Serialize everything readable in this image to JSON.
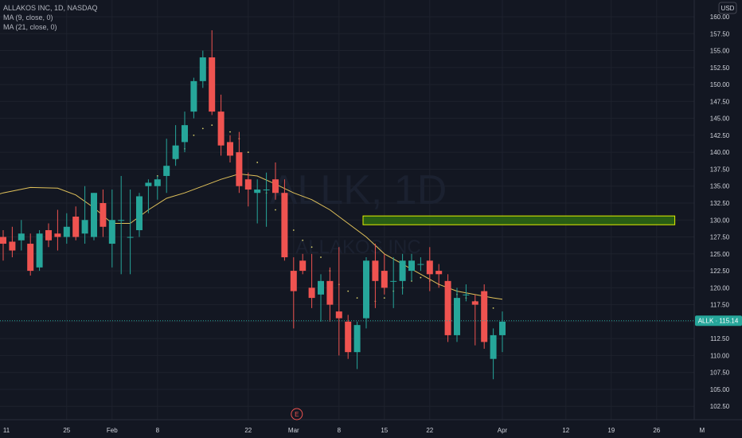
{
  "header": {
    "title_line": "ALLAKOS INC, 1D, NASDAQ",
    "indicators": [
      "MA (9, close, 0)",
      "MA (21, close, 0)"
    ]
  },
  "watermark": {
    "symbol": "ALLK, 1D",
    "name": "ALLAKOS INC"
  },
  "currency_button": "USD",
  "price_tag": {
    "label": "ALLK · 115.14",
    "color": "#26a69a"
  },
  "earnings_marker": "E",
  "colors": {
    "up": "#26a69a",
    "down": "#ef5350",
    "ma9": "#d8cf6a",
    "ma21": "#e0c15a",
    "zone": "#e2f000"
  },
  "chart_data": {
    "type": "candlestick",
    "symbol": "ALLK",
    "timeframe": "1D",
    "ylim": [
      101,
      162
    ],
    "y_ticks": [
      102.5,
      105.0,
      107.5,
      110.0,
      112.5,
      115.0,
      117.5,
      120.0,
      122.5,
      125.0,
      127.5,
      130.0,
      132.5,
      135.0,
      137.5,
      140.0,
      142.5,
      145.0,
      147.5,
      150.0,
      152.5,
      155.0,
      157.5,
      160.0
    ],
    "y_tick_labels": [
      "102.50",
      "105.00",
      "107.50",
      "110.00",
      "112.50",
      "115.00",
      "117.50",
      "120.00",
      "122.50",
      "125.00",
      "127.50",
      "130.00",
      "132.50",
      "135.00",
      "137.50",
      "140.00",
      "142.50",
      "145.00",
      "147.50",
      "150.00",
      "152.50",
      "155.00",
      "157.50",
      "160.00"
    ],
    "x_ticks": [
      {
        "label": "11",
        "i": -3
      },
      {
        "label": "25",
        "i": 7
      },
      {
        "label": "Feb",
        "i": 12
      },
      {
        "label": "8",
        "i": 17
      },
      {
        "label": "22",
        "i": 27
      },
      {
        "label": "Mar",
        "i": 32
      },
      {
        "label": "8",
        "i": 37
      },
      {
        "label": "15",
        "i": 42
      },
      {
        "label": "22",
        "i": 47
      },
      {
        "label": "Apr",
        "i": 55
      },
      {
        "label": "12",
        "i": 62
      },
      {
        "label": "19",
        "i": 67
      },
      {
        "label": "26",
        "i": 72
      },
      {
        "label": "M",
        "i": 77
      }
    ],
    "candles": [
      {
        "o": 127.5,
        "h": 128.5,
        "l": 124.0,
        "c": 126.5
      },
      {
        "o": 126.8,
        "h": 129.0,
        "l": 124.5,
        "c": 125.5
      },
      {
        "o": 127.0,
        "h": 130.0,
        "l": 125.5,
        "c": 128.0
      },
      {
        "o": 126.5,
        "h": 128.0,
        "l": 121.8,
        "c": 122.5
      },
      {
        "o": 123.0,
        "h": 128.5,
        "l": 122.5,
        "c": 128.0
      },
      {
        "o": 128.5,
        "h": 129.5,
        "l": 126.0,
        "c": 127.0
      },
      {
        "o": 128.0,
        "h": 131.5,
        "l": 125.5,
        "c": 127.5
      },
      {
        "o": 127.5,
        "h": 131.0,
        "l": 126.5,
        "c": 129.0
      },
      {
        "o": 130.5,
        "h": 132.0,
        "l": 127.0,
        "c": 127.5
      },
      {
        "o": 128.0,
        "h": 135.0,
        "l": 126.5,
        "c": 130.0
      },
      {
        "o": 127.5,
        "h": 134.0,
        "l": 127.0,
        "c": 134.0
      },
      {
        "o": 132.5,
        "h": 134.5,
        "l": 127.5,
        "c": 129.0
      },
      {
        "o": 126.5,
        "h": 134.5,
        "l": 123.0,
        "c": 130.0
      },
      {
        "o": 130.0,
        "h": 136.5,
        "l": 122.0,
        "c": 130.0
      },
      {
        "o": 127.5,
        "h": 134.5,
        "l": 122.0,
        "c": 127.5
      },
      {
        "o": 128.5,
        "h": 134.0,
        "l": 127.5,
        "c": 133.5
      },
      {
        "o": 135.0,
        "h": 136.0,
        "l": 131.0,
        "c": 135.5
      },
      {
        "o": 135.0,
        "h": 136.5,
        "l": 133.0,
        "c": 136.0
      },
      {
        "o": 136.5,
        "h": 142.0,
        "l": 134.0,
        "c": 138.0
      },
      {
        "o": 139.0,
        "h": 144.0,
        "l": 138.0,
        "c": 141.0
      },
      {
        "o": 141.5,
        "h": 146.0,
        "l": 140.0,
        "c": 144.0
      },
      {
        "o": 146.0,
        "h": 151.0,
        "l": 145.0,
        "c": 150.5
      },
      {
        "o": 150.5,
        "h": 155.0,
        "l": 149.5,
        "c": 154.0
      },
      {
        "o": 154.0,
        "h": 158.0,
        "l": 145.5,
        "c": 146.0
      },
      {
        "o": 146.0,
        "h": 148.5,
        "l": 139.5,
        "c": 141.0
      },
      {
        "o": 141.5,
        "h": 142.5,
        "l": 138.5,
        "c": 139.5
      },
      {
        "o": 140.0,
        "h": 143.0,
        "l": 134.0,
        "c": 135.0
      },
      {
        "o": 136.0,
        "h": 137.0,
        "l": 132.0,
        "c": 134.5
      },
      {
        "o": 134.0,
        "h": 136.0,
        "l": 129.5,
        "c": 134.5
      },
      {
        "o": 134.5,
        "h": 137.0,
        "l": 129.0,
        "c": 134.5
      },
      {
        "o": 136.0,
        "h": 138.5,
        "l": 133.0,
        "c": 134.0
      },
      {
        "o": 134.0,
        "h": 136.0,
        "l": 124.0,
        "c": 124.5
      },
      {
        "o": 122.5,
        "h": 124.5,
        "l": 114.0,
        "c": 119.5
      },
      {
        "o": 124.0,
        "h": 125.0,
        "l": 122.0,
        "c": 122.5
      },
      {
        "o": 120.0,
        "h": 125.0,
        "l": 117.0,
        "c": 118.5
      },
      {
        "o": 119.0,
        "h": 122.0,
        "l": 115.0,
        "c": 121.0
      },
      {
        "o": 121.0,
        "h": 123.0,
        "l": 115.0,
        "c": 117.5
      },
      {
        "o": 116.5,
        "h": 126.0,
        "l": 110.0,
        "c": 115.5
      },
      {
        "o": 115.0,
        "h": 116.0,
        "l": 109.5,
        "c": 110.5
      },
      {
        "o": 110.5,
        "h": 115.0,
        "l": 108.0,
        "c": 114.5
      },
      {
        "o": 115.5,
        "h": 124.5,
        "l": 114.0,
        "c": 124.0
      },
      {
        "o": 124.0,
        "h": 126.5,
        "l": 117.0,
        "c": 121.0
      },
      {
        "o": 122.5,
        "h": 125.0,
        "l": 119.0,
        "c": 120.0
      },
      {
        "o": 121.0,
        "h": 124.5,
        "l": 117.0,
        "c": 121.0
      },
      {
        "o": 121.0,
        "h": 125.0,
        "l": 119.0,
        "c": 124.0
      },
      {
        "o": 122.5,
        "h": 125.0,
        "l": 121.0,
        "c": 124.0
      },
      {
        "o": 123.5,
        "h": 124.5,
        "l": 122.5,
        "c": 123.5
      },
      {
        "o": 124.0,
        "h": 126.0,
        "l": 119.5,
        "c": 122.0
      },
      {
        "o": 122.5,
        "h": 123.5,
        "l": 120.0,
        "c": 122.0
      },
      {
        "o": 121.0,
        "h": 122.0,
        "l": 112.0,
        "c": 113.0
      },
      {
        "o": 113.0,
        "h": 120.0,
        "l": 112.0,
        "c": 118.5
      },
      {
        "o": 119.0,
        "h": 120.5,
        "l": 118.0,
        "c": 119.0
      },
      {
        "o": 118.0,
        "h": 119.0,
        "l": 111.5,
        "c": 117.5
      },
      {
        "o": 119.5,
        "h": 120.5,
        "l": 111.0,
        "c": 112.0
      },
      {
        "o": 109.5,
        "h": 114.0,
        "l": 106.5,
        "c": 113.0
      },
      {
        "o": 113.0,
        "h": 116.5,
        "l": 110.5,
        "c": 115.0
      }
    ],
    "ma21": [
      {
        "i": -3,
        "v": 132.8
      },
      {
        "i": 0,
        "v": 134.0
      },
      {
        "i": 3,
        "v": 134.8
      },
      {
        "i": 6,
        "v": 134.7
      },
      {
        "i": 8,
        "v": 133.7
      },
      {
        "i": 10,
        "v": 131.8
      },
      {
        "i": 12,
        "v": 129.5
      },
      {
        "i": 14,
        "v": 129.5
      },
      {
        "i": 16,
        "v": 131.5
      },
      {
        "i": 18,
        "v": 133.2
      },
      {
        "i": 20,
        "v": 134.0
      },
      {
        "i": 22,
        "v": 135.0
      },
      {
        "i": 24,
        "v": 136.0
      },
      {
        "i": 26,
        "v": 136.8
      },
      {
        "i": 28,
        "v": 136.5
      },
      {
        "i": 30,
        "v": 135.3
      },
      {
        "i": 32,
        "v": 134.0
      },
      {
        "i": 34,
        "v": 133.0
      },
      {
        "i": 36,
        "v": 131.5
      },
      {
        "i": 38,
        "v": 129.5
      },
      {
        "i": 40,
        "v": 127.5
      },
      {
        "i": 42,
        "v": 125.0
      },
      {
        "i": 44,
        "v": 123.5
      },
      {
        "i": 46,
        "v": 122.0
      },
      {
        "i": 48,
        "v": 120.5
      },
      {
        "i": 50,
        "v": 119.5
      },
      {
        "i": 52,
        "v": 119.0
      },
      {
        "i": 54,
        "v": 118.5
      },
      {
        "i": 55,
        "v": 118.3
      }
    ],
    "ma9": [
      {
        "i": 17,
        "v": 136.5
      },
      {
        "i": 18,
        "v": 137.5
      },
      {
        "i": 19,
        "v": 139.0
      },
      {
        "i": 20,
        "v": 140.5
      },
      {
        "i": 21,
        "v": 142.5
      },
      {
        "i": 22,
        "v": 143.5
      },
      {
        "i": 23,
        "v": 144.0
      },
      {
        "i": 24,
        "v": 143.5
      },
      {
        "i": 25,
        "v": 143.0
      },
      {
        "i": 26,
        "v": 142.0
      },
      {
        "i": 27,
        "v": 140.0
      },
      {
        "i": 28,
        "v": 138.5
      },
      {
        "i": 29,
        "v": 134.0
      },
      {
        "i": 30,
        "v": 131.5
      },
      {
        "i": 31,
        "v": 130.0
      },
      {
        "i": 32,
        "v": 128.5
      },
      {
        "i": 33,
        "v": 127.0
      },
      {
        "i": 34,
        "v": 126.0
      },
      {
        "i": 35,
        "v": 124.5
      },
      {
        "i": 36,
        "v": 122.5
      },
      {
        "i": 37,
        "v": 120.5
      },
      {
        "i": 38,
        "v": 119.5
      },
      {
        "i": 39,
        "v": 118.5
      },
      {
        "i": 40,
        "v": 118.0
      },
      {
        "i": 41,
        "v": 118.0
      },
      {
        "i": 42,
        "v": 118.5
      },
      {
        "i": 43,
        "v": 119.5
      },
      {
        "i": 44,
        "v": 120.0
      },
      {
        "i": 45,
        "v": 121.0
      },
      {
        "i": 46,
        "v": 121.5
      },
      {
        "i": 47,
        "v": 121.0
      },
      {
        "i": 48,
        "v": 120.5
      },
      {
        "i": 49,
        "v": 119.5
      },
      {
        "i": 50,
        "v": 119.0
      },
      {
        "i": 51,
        "v": 118.5
      },
      {
        "i": 52,
        "v": 118.0
      },
      {
        "i": 53,
        "v": 117.5
      },
      {
        "i": 54,
        "v": 117.0
      }
    ],
    "zone": {
      "from_i": 40,
      "to_i": 74,
      "y_low": 129.3,
      "y_high": 130.6
    },
    "last_price": 115.14,
    "earnings_i": 32,
    "grid": true
  }
}
